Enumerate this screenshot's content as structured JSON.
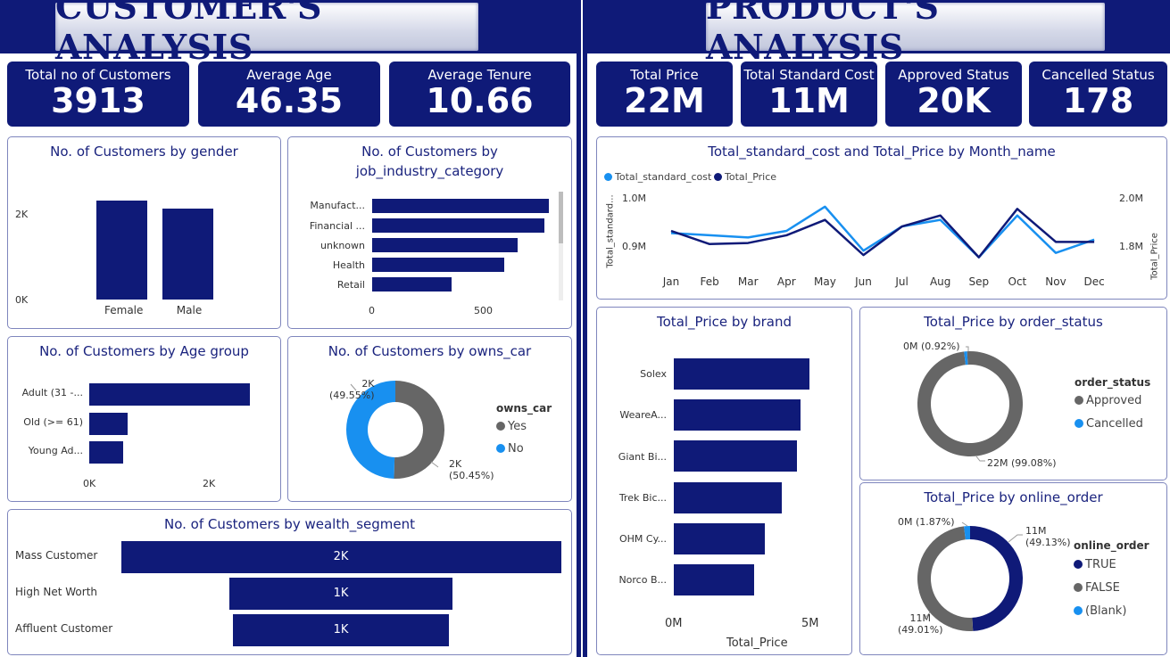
{
  "header": {
    "customer_title": "CUSTOMER'S ANALYSIS",
    "product_title": "PRODUCT'S ANALYSIS"
  },
  "kpis": [
    {
      "label": "Total no of Customers",
      "value": "3913"
    },
    {
      "label": "Average Age",
      "value": "46.35"
    },
    {
      "label": "Average Tenure",
      "value": "10.66"
    },
    {
      "label": "Total Price",
      "value": "22M"
    },
    {
      "label": "Total Standard Cost",
      "value": "11M"
    },
    {
      "label": "Approved Status",
      "value": "20K"
    },
    {
      "label": "Cancelled Status",
      "value": "178"
    }
  ],
  "colors": {
    "navy": "#0f1a78",
    "blue": "#1890f0",
    "gray": "#666666"
  },
  "chart_data": [
    {
      "id": "gender",
      "type": "bar",
      "title": "No. of Customers by gender",
      "categories": [
        "Female",
        "Male"
      ],
      "values": [
        2040,
        1870
      ],
      "yticks": [
        "2K",
        "0K"
      ],
      "ylim": [
        0,
        2300
      ]
    },
    {
      "id": "job",
      "type": "bar",
      "orientation": "horizontal",
      "title": "No. of Customers by job_industry_category",
      "title_lines": [
        "No. of Customers by",
        "job_industry_category"
      ],
      "categories": [
        "Manufact...",
        "Financial ...",
        "unknown",
        "Health",
        "Retail"
      ],
      "values": [
        796,
        774,
        656,
        596,
        358
      ],
      "xticks": [
        "0",
        "500"
      ],
      "xlim": [
        0,
        800
      ]
    },
    {
      "id": "age",
      "type": "bar",
      "orientation": "horizontal",
      "title": "No. of Customers by Age group",
      "categories": [
        "Adult (31 -...",
        "Old (>= 61)",
        "Young Ad..."
      ],
      "values": [
        2820,
        670,
        590
      ],
      "xticks": [
        "0K",
        "2K"
      ],
      "xlim": [
        0,
        3000
      ]
    },
    {
      "id": "owns_car",
      "type": "pie",
      "title": "No. of Customers by owns_car",
      "legend_title": "owns_car",
      "labels": [
        "Yes",
        "No"
      ],
      "values": [
        50.45,
        49.55
      ],
      "data_labels": [
        [
          "2K",
          "(50.45%)"
        ],
        [
          "2K",
          "(49.55%)"
        ]
      ],
      "colors": [
        "#666666",
        "#1890f0"
      ]
    },
    {
      "id": "wealth",
      "type": "bar",
      "orientation": "horizontal",
      "title": "No. of Customers by wealth_segment",
      "categories": [
        "Mass Customer",
        "High Net Worth",
        "Affluent Customer"
      ],
      "values": [
        1950,
        990,
        960
      ],
      "data_labels": [
        "2K",
        "1K",
        "1K"
      ],
      "xlim": [
        0,
        1950
      ]
    },
    {
      "id": "monthly",
      "type": "line",
      "title": "Total_standard_cost and Total_Price by Month_name",
      "x": [
        "Jan",
        "Feb",
        "Mar",
        "Apr",
        "May",
        "Jun",
        "Jul",
        "Aug",
        "Sep",
        "Oct",
        "Nov",
        "Dec"
      ],
      "series": [
        {
          "name": "Total_standard_cost",
          "axis": "left",
          "color": "#1890f0",
          "values": [
            0.92,
            0.915,
            0.91,
            0.925,
            0.98,
            0.88,
            0.935,
            0.95,
            0.865,
            0.96,
            0.875,
            0.905
          ]
        },
        {
          "name": "Total_Price",
          "axis": "right",
          "color": "#0f1a78",
          "values": [
            1.85,
            1.79,
            1.795,
            1.83,
            1.9,
            1.74,
            1.87,
            1.92,
            1.73,
            1.95,
            1.8,
            1.8
          ]
        }
      ],
      "y_left": {
        "label": "Total_standard...",
        "ticks": [
          "1.0M",
          "0.9M"
        ],
        "lim": [
          0.85,
          1.0
        ]
      },
      "y_right": {
        "label": "Total_Price",
        "ticks": [
          "2.0M",
          "1.8M"
        ],
        "lim": [
          1.7,
          2.0
        ]
      }
    },
    {
      "id": "brand",
      "type": "bar",
      "orientation": "horizontal",
      "title": "Total_Price by brand",
      "categories": [
        "Solex",
        "WeareA...",
        "Giant Bi...",
        "Trek Bic...",
        "OHM Cy...",
        "Norco B..."
      ],
      "values": [
        4.4,
        4.1,
        4.0,
        3.5,
        2.95,
        2.6
      ],
      "xticks": [
        "0M",
        "5M"
      ],
      "xlabel": "Total_Price",
      "xlim": [
        0,
        5
      ]
    },
    {
      "id": "order_status",
      "type": "pie",
      "title": "Total_Price by order_status",
      "legend_title": "order_status",
      "labels": [
        "Approved",
        "Cancelled"
      ],
      "values": [
        99.08,
        0.92
      ],
      "data_labels": [
        "22M (99.08%)",
        "0M (0.92%)"
      ],
      "colors": [
        "#666666",
        "#1890f0"
      ]
    },
    {
      "id": "online_order",
      "type": "pie",
      "title": "Total_Price by online_order",
      "legend_title": "online_order",
      "labels": [
        "TRUE",
        "FALSE",
        "(Blank)"
      ],
      "values": [
        49.13,
        49.01,
        1.87
      ],
      "data_labels": [
        [
          "11M",
          "(49.13%)"
        ],
        [
          "11M",
          "(49.01%)"
        ],
        "0M (1.87%)"
      ],
      "colors": [
        "#0f1a78",
        "#666666",
        "#1890f0"
      ]
    }
  ]
}
